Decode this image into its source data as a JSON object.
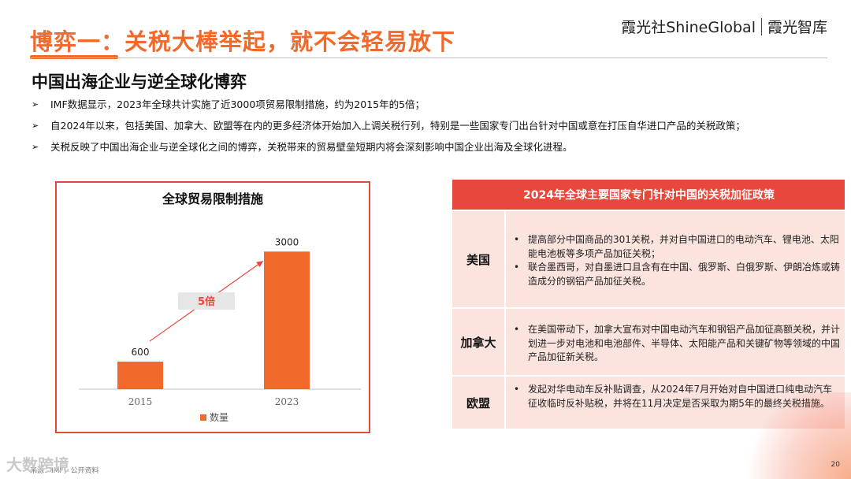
{
  "header": {
    "title": "博弈一：关税大棒举起，就不会轻易放下",
    "brand_left": "霞光社ShineGlobal",
    "brand_right": "霞光智库"
  },
  "subtitle": "中国出海企业与逆全球化博弈",
  "bullets": [
    "IMF数据显示，2023年全球共计实施了近3000项贸易限制措施，约为2015年的5倍；",
    "自2024年以来，包括美国、加拿大、欧盟等在内的更多经济体开始加入上调关税行列，特别是一些国家专门出台针对中国或意在打压自华进口产品的关税政策；",
    "关税反映了中国出海企业与逆全球化之间的博弈，关税带来的贸易壁垒短期内将会深刻影响中国企业出海及全球化进程。"
  ],
  "bullet_marker": "➢",
  "chart_data": {
    "type": "bar",
    "title": "全球贸易限制措施",
    "categories": [
      "2015",
      "2023"
    ],
    "series": [
      {
        "name": "数量",
        "values": [
          600,
          3000
        ]
      }
    ],
    "data_labels": [
      "600",
      "3000"
    ],
    "annotation": "5倍",
    "ylim": [
      0,
      3400
    ],
    "grid": false,
    "legend": "bottom",
    "colors": {
      "bar": "#f26a2b",
      "arrow": "#e8473c",
      "annotation_bg": "#e6e6e6",
      "annotation_text": "#e8473c"
    }
  },
  "table": {
    "header": "2024年全球主要国家专门针对中国的关税加征政策",
    "rows": [
      {
        "country": "美国",
        "items": [
          "提高部分中国商品的301关税，并对自中国进口的电动汽车、锂电池、太阳能电池板等多项产品加征关税；",
          "联合墨西哥，对自墨进口且含有在中国、俄罗斯、白俄罗斯、伊朗冶炼或铸造成分的钢铝产品加征关税。"
        ]
      },
      {
        "country": "加拿大",
        "items": [
          "在美国带动下，加拿大宣布对中国电动汽车和钢铝产品加征高额关税，并计划进一步对电池和电池部件、半导体、太阳能产品和关键矿物等领域的中国产品加征新关税。"
        ]
      },
      {
        "country": "欧盟",
        "items": [
          "发起对华电动车反补贴调查，从2024年7月开始对自中国进口纯电动汽车征收临时反补贴税，并将在11月决定是否采取为期5年的最终关税措施。"
        ]
      }
    ],
    "bullet_symbol": "•"
  },
  "footer": {
    "source": "来源：IMF，公开资料",
    "watermark": "大数跨境",
    "page_number": "20"
  },
  "colors": {
    "accent": "#f26a2b",
    "table_header": "#e8473c",
    "table_row": "#fbe3de"
  }
}
